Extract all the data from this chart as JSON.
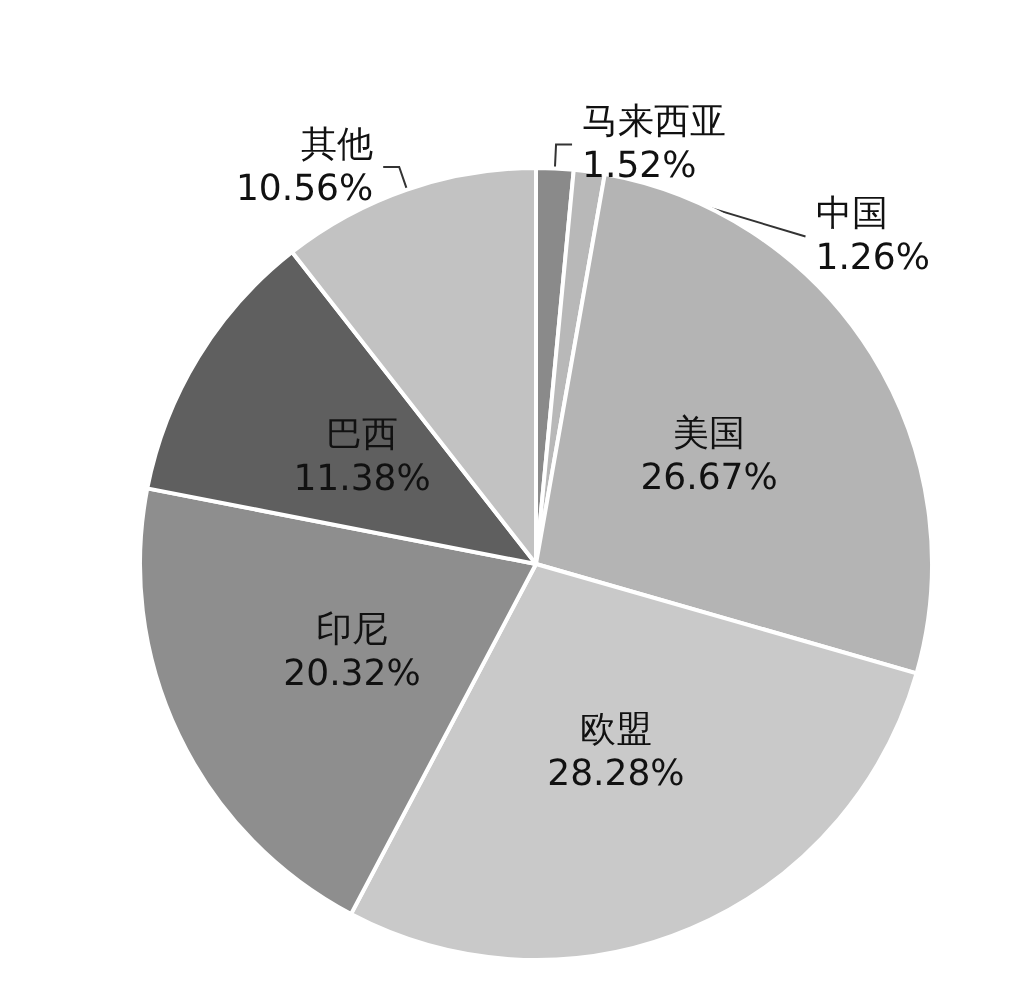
{
  "chart_data": {
    "type": "pie",
    "categories": [
      "马来西亚",
      "中国",
      "美国",
      "欧盟",
      "印尼",
      "巴西",
      "其他"
    ],
    "values": [
      1.52,
      1.26,
      26.67,
      28.28,
      20.32,
      11.38,
      10.56
    ],
    "value_labels": [
      "1.52%",
      "1.26%",
      "26.67%",
      "28.28%",
      "20.32%",
      "11.38%",
      "10.56%"
    ],
    "colors": [
      "#8a8a8a",
      "#b8b8b8",
      "#b4b4b4",
      "#c9c9c9",
      "#8e8e8e",
      "#5f5f5f",
      "#c2c2c2"
    ],
    "legend": false
  }
}
